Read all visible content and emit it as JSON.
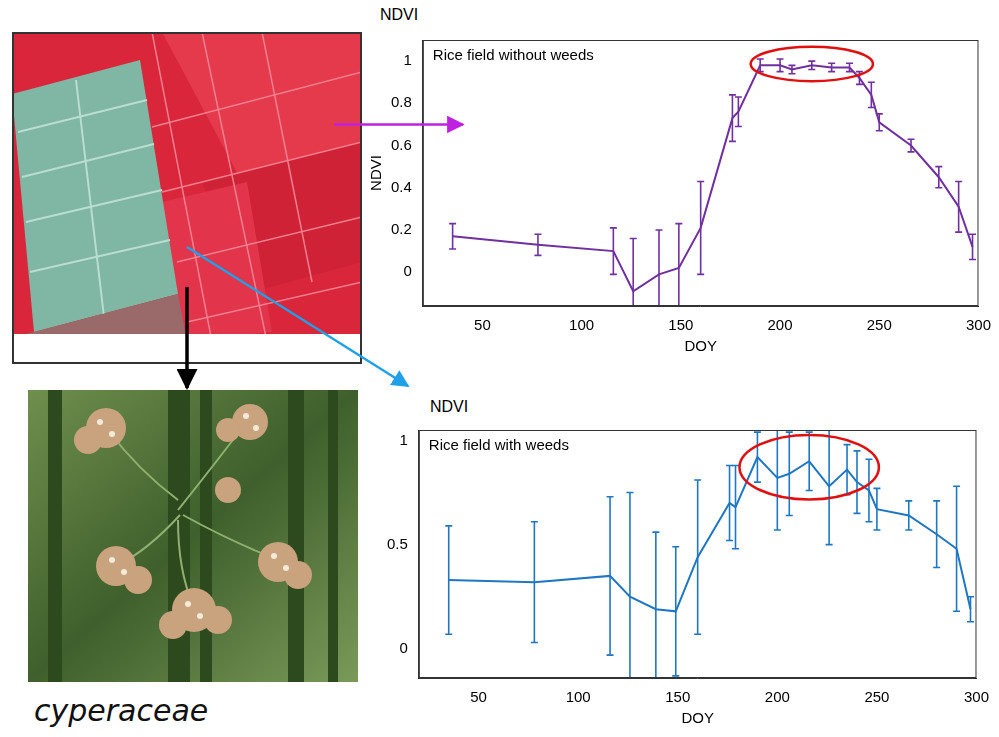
{
  "chart_data": [
    {
      "type": "line",
      "annotation": "Rice field without weeds",
      "ylabel_top": "NDVI",
      "y_label": "NDVI",
      "x_label": "DOY",
      "color": "#7030a0",
      "x": [
        35,
        78,
        116,
        126,
        139,
        149,
        160,
        176,
        179,
        190,
        200,
        206,
        216,
        226,
        235,
        240,
        246,
        250,
        266,
        280,
        290,
        297
      ],
      "values": [
        0.17,
        0.13,
        0.1,
        -0.09,
        -0.01,
        0.02,
        0.21,
        0.73,
        0.76,
        0.98,
        0.98,
        0.96,
        0.98,
        0.97,
        0.97,
        0.92,
        0.84,
        0.71,
        0.6,
        0.45,
        0.31,
        0.12
      ],
      "errors": [
        0.06,
        0.05,
        0.11,
        0.25,
        0.21,
        0.21,
        0.22,
        0.11,
        0.07,
        0.03,
        0.03,
        0.02,
        0.02,
        0.02,
        0.02,
        0.03,
        0.06,
        0.04,
        0.03,
        0.05,
        0.12,
        0.06
      ],
      "xlim": [
        20,
        300
      ],
      "xticks": [
        50,
        100,
        150,
        200,
        250,
        300
      ],
      "ylim": [
        -0.16,
        1.1
      ],
      "yticks": [
        0,
        0.2,
        0.4,
        0.6,
        0.8,
        1
      ],
      "grid": false
    },
    {
      "type": "line",
      "annotation": "Rice field with weeds",
      "ylabel_top": "NDVI",
      "x_label": "DOY",
      "color": "#1f77c4",
      "x": [
        35,
        78,
        116,
        126,
        139,
        149,
        160,
        176,
        179,
        190,
        200,
        206,
        216,
        226,
        235,
        240,
        246,
        250,
        266,
        280,
        290,
        297
      ],
      "values": [
        0.33,
        0.32,
        0.35,
        0.25,
        0.19,
        0.18,
        0.44,
        0.7,
        0.68,
        0.92,
        0.82,
        0.84,
        0.9,
        0.78,
        0.86,
        0.8,
        0.76,
        0.67,
        0.64,
        0.55,
        0.48,
        0.19
      ],
      "errors": [
        0.26,
        0.29,
        0.38,
        0.5,
        0.37,
        0.31,
        0.37,
        0.18,
        0.2,
        0.12,
        0.25,
        0.2,
        0.14,
        0.28,
        0.12,
        0.15,
        0.15,
        0.1,
        0.07,
        0.16,
        0.3,
        0.06
      ],
      "xlim": [
        20,
        300
      ],
      "xticks": [
        50,
        100,
        150,
        200,
        250,
        300
      ],
      "ylim": [
        -0.14,
        1.05
      ],
      "yticks": [
        0,
        0.5,
        1
      ],
      "grid": false
    }
  ],
  "photo_caption": "cyperaceae"
}
